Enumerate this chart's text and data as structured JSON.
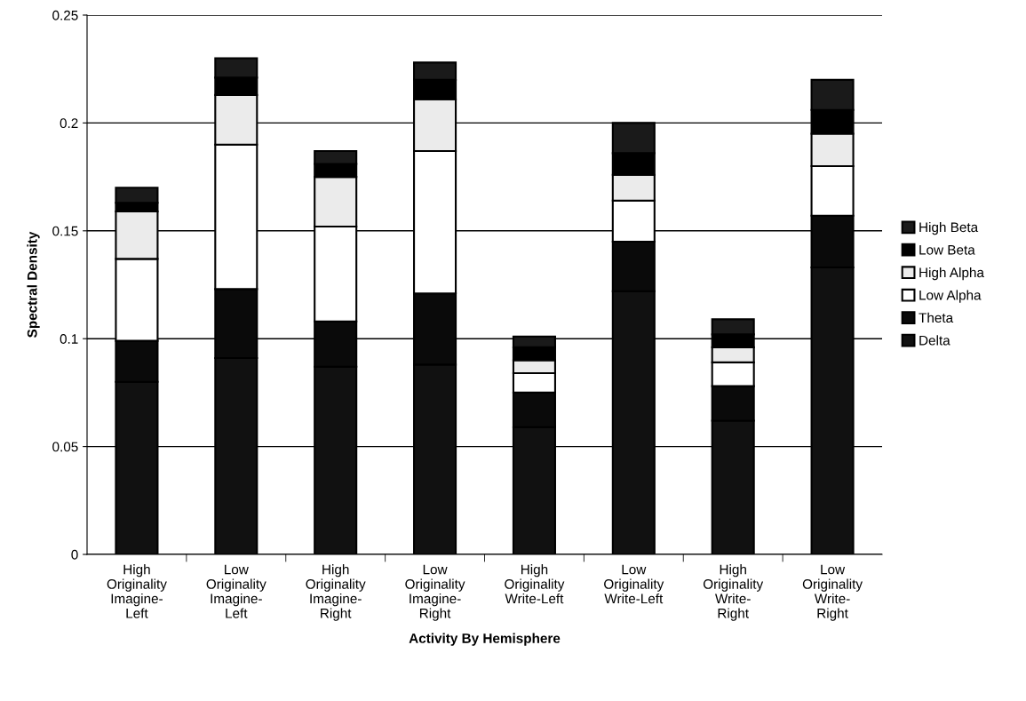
{
  "chart_data": {
    "type": "bar",
    "stacked": true,
    "xlabel": "Activity By Hemisphere",
    "ylabel": "Spectral Density",
    "categories": [
      "High\nOriginality\nImagine-\nLeft",
      "Low\nOriginality\nImagine-\nLeft",
      "High\nOriginality\nImagine-\nRight",
      "Low\nOriginality\nImagine-\nRight",
      "High\nOriginality\nWrite-Left",
      "Low\nOriginality\nWrite-Left",
      "High\nOriginality\nWrite-\nRight",
      "Low\nOriginality\nWrite-\nRight"
    ],
    "series": [
      {
        "name": "Delta",
        "color": "#111111",
        "values": [
          0.08,
          0.091,
          0.087,
          0.088,
          0.059,
          0.122,
          0.062,
          0.133
        ]
      },
      {
        "name": "Theta",
        "color": "#0a0a0a",
        "values": [
          0.019,
          0.032,
          0.021,
          0.033,
          0.016,
          0.023,
          0.016,
          0.024
        ]
      },
      {
        "name": "Low Alpha",
        "color": "#ffffff",
        "values": [
          0.038,
          0.067,
          0.044,
          0.066,
          0.009,
          0.019,
          0.011,
          0.023
        ]
      },
      {
        "name": "High Alpha",
        "color": "#ebebeb",
        "values": [
          0.022,
          0.023,
          0.023,
          0.024,
          0.006,
          0.012,
          0.007,
          0.015
        ]
      },
      {
        "name": "Low Beta",
        "color": "#000000",
        "values": [
          0.004,
          0.008,
          0.006,
          0.009,
          0.006,
          0.01,
          0.006,
          0.011
        ]
      },
      {
        "name": "High Beta",
        "color": "#1a1a1a",
        "values": [
          0.007,
          0.009,
          0.006,
          0.008,
          0.005,
          0.014,
          0.007,
          0.014
        ]
      }
    ],
    "ylim": [
      0,
      0.25
    ],
    "yticks": [
      {
        "value": 0,
        "label": "0"
      },
      0.05,
      0.1,
      0.15,
      0.2,
      0.25
    ],
    "grid": "y",
    "legend": "right"
  }
}
